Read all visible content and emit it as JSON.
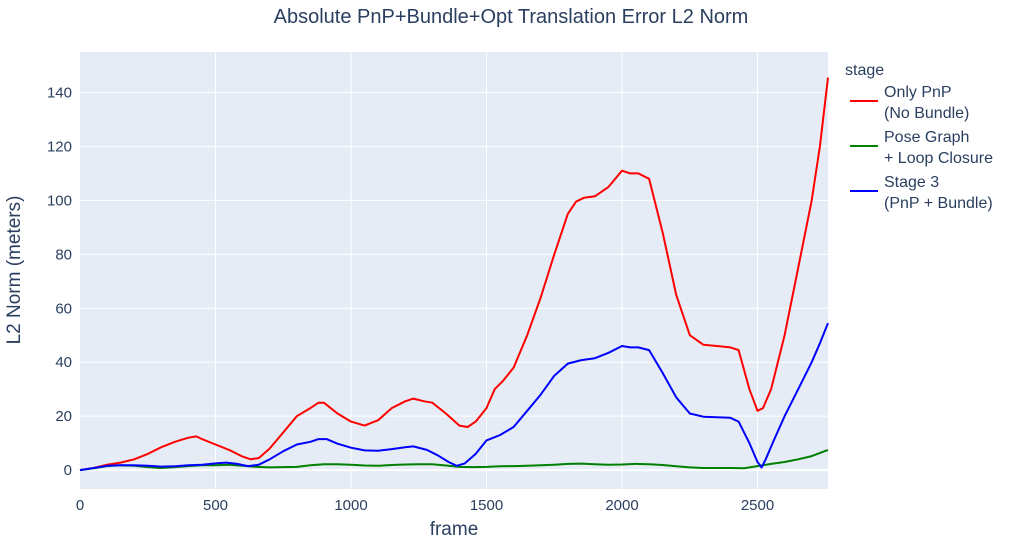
{
  "chart_data": {
    "type": "line",
    "title": "Absolute PnP+Bundle+Opt Translation Error L2 Norm",
    "xlabel": "frame",
    "ylabel": "L2 Norm (meters)",
    "xlim": [
      0,
      2760
    ],
    "ylim": [
      -7,
      155
    ],
    "x_ticks": [
      0,
      500,
      1000,
      1500,
      2000,
      2500
    ],
    "y_ticks": [
      0,
      20,
      40,
      60,
      80,
      100,
      120,
      140
    ],
    "grid": true,
    "legend": {
      "title": "stage",
      "placement": "right"
    },
    "series": [
      {
        "name": "Only PnP\n(No Bundle)",
        "color": "#ff0000",
        "points": [
          [
            0,
            0
          ],
          [
            50,
            0.8
          ],
          [
            100,
            2
          ],
          [
            150,
            2.8
          ],
          [
            200,
            4
          ],
          [
            250,
            6
          ],
          [
            300,
            8.5
          ],
          [
            350,
            10.5
          ],
          [
            400,
            12
          ],
          [
            430,
            12.5
          ],
          [
            450,
            11.5
          ],
          [
            500,
            9.5
          ],
          [
            550,
            7.5
          ],
          [
            600,
            5
          ],
          [
            630,
            4
          ],
          [
            660,
            4.5
          ],
          [
            700,
            8
          ],
          [
            750,
            14
          ],
          [
            800,
            20
          ],
          [
            850,
            23
          ],
          [
            880,
            25
          ],
          [
            900,
            25
          ],
          [
            950,
            21
          ],
          [
            1000,
            18
          ],
          [
            1050,
            16.5
          ],
          [
            1100,
            18.5
          ],
          [
            1150,
            23
          ],
          [
            1200,
            25.5
          ],
          [
            1230,
            26.5
          ],
          [
            1270,
            25.5
          ],
          [
            1300,
            25
          ],
          [
            1350,
            21
          ],
          [
            1400,
            16.5
          ],
          [
            1430,
            16
          ],
          [
            1460,
            18
          ],
          [
            1500,
            23
          ],
          [
            1530,
            30
          ],
          [
            1560,
            33
          ],
          [
            1600,
            38
          ],
          [
            1650,
            50
          ],
          [
            1700,
            64
          ],
          [
            1750,
            80
          ],
          [
            1800,
            95
          ],
          [
            1830,
            99.5
          ],
          [
            1860,
            101
          ],
          [
            1900,
            101.5
          ],
          [
            1950,
            105
          ],
          [
            2000,
            111
          ],
          [
            2030,
            110
          ],
          [
            2060,
            110
          ],
          [
            2100,
            108
          ],
          [
            2150,
            88
          ],
          [
            2200,
            65
          ],
          [
            2250,
            50
          ],
          [
            2300,
            46.5
          ],
          [
            2350,
            46
          ],
          [
            2400,
            45.5
          ],
          [
            2430,
            44.5
          ],
          [
            2470,
            30
          ],
          [
            2500,
            22
          ],
          [
            2520,
            23
          ],
          [
            2550,
            30
          ],
          [
            2600,
            50
          ],
          [
            2650,
            75
          ],
          [
            2700,
            100
          ],
          [
            2730,
            120
          ],
          [
            2760,
            145.5
          ]
        ]
      },
      {
        "name": "Pose Graph\n+ Loop Closure",
        "color": "#008000",
        "points": [
          [
            0,
            0
          ],
          [
            50,
            0.7
          ],
          [
            100,
            1.5
          ],
          [
            150,
            1.8
          ],
          [
            200,
            1.6
          ],
          [
            250,
            1.1
          ],
          [
            300,
            0.8
          ],
          [
            350,
            1.1
          ],
          [
            400,
            1.5
          ],
          [
            450,
            1.8
          ],
          [
            500,
            1.8
          ],
          [
            550,
            2
          ],
          [
            600,
            1.6
          ],
          [
            650,
            1.2
          ],
          [
            700,
            1
          ],
          [
            800,
            1.2
          ],
          [
            850,
            1.8
          ],
          [
            900,
            2.2
          ],
          [
            950,
            2.2
          ],
          [
            1000,
            2
          ],
          [
            1050,
            1.7
          ],
          [
            1100,
            1.6
          ],
          [
            1150,
            1.9
          ],
          [
            1200,
            2.1
          ],
          [
            1250,
            2.2
          ],
          [
            1300,
            2.2
          ],
          [
            1350,
            1.7
          ],
          [
            1400,
            1.2
          ],
          [
            1450,
            1.1
          ],
          [
            1500,
            1.2
          ],
          [
            1550,
            1.4
          ],
          [
            1600,
            1.5
          ],
          [
            1650,
            1.6
          ],
          [
            1700,
            1.8
          ],
          [
            1750,
            2
          ],
          [
            1800,
            2.3
          ],
          [
            1850,
            2.4
          ],
          [
            1900,
            2.2
          ],
          [
            1950,
            2
          ],
          [
            2000,
            2.1
          ],
          [
            2050,
            2.3
          ],
          [
            2100,
            2.2
          ],
          [
            2150,
            1.9
          ],
          [
            2200,
            1.4
          ],
          [
            2250,
            1
          ],
          [
            2300,
            0.8
          ],
          [
            2350,
            0.8
          ],
          [
            2400,
            0.8
          ],
          [
            2450,
            0.7
          ],
          [
            2500,
            1.5
          ],
          [
            2550,
            2.3
          ],
          [
            2600,
            3
          ],
          [
            2650,
            4
          ],
          [
            2700,
            5.2
          ],
          [
            2760,
            7.5
          ]
        ]
      },
      {
        "name": "Stage 3\n(PnP + Bundle)",
        "color": "#0000ff",
        "points": [
          [
            0,
            0
          ],
          [
            50,
            0.8
          ],
          [
            100,
            1.6
          ],
          [
            150,
            1.8
          ],
          [
            200,
            1.8
          ],
          [
            250,
            1.6
          ],
          [
            300,
            1.3
          ],
          [
            350,
            1.4
          ],
          [
            400,
            1.8
          ],
          [
            450,
            2
          ],
          [
            500,
            2.5
          ],
          [
            540,
            2.8
          ],
          [
            580,
            2.3
          ],
          [
            620,
            1.5
          ],
          [
            660,
            2
          ],
          [
            700,
            4
          ],
          [
            750,
            7
          ],
          [
            800,
            9.5
          ],
          [
            850,
            10.5
          ],
          [
            880,
            11.5
          ],
          [
            910,
            11.5
          ],
          [
            950,
            9.8
          ],
          [
            1000,
            8.3
          ],
          [
            1050,
            7.3
          ],
          [
            1100,
            7.2
          ],
          [
            1150,
            7.8
          ],
          [
            1200,
            8.5
          ],
          [
            1230,
            8.8
          ],
          [
            1280,
            7.5
          ],
          [
            1320,
            5.5
          ],
          [
            1360,
            3
          ],
          [
            1390,
            1.6
          ],
          [
            1420,
            2.5
          ],
          [
            1460,
            6
          ],
          [
            1500,
            11
          ],
          [
            1550,
            13
          ],
          [
            1600,
            16
          ],
          [
            1650,
            22
          ],
          [
            1700,
            28
          ],
          [
            1750,
            35
          ],
          [
            1800,
            39.5
          ],
          [
            1850,
            40.8
          ],
          [
            1900,
            41.5
          ],
          [
            1950,
            43.5
          ],
          [
            2000,
            46
          ],
          [
            2030,
            45.5
          ],
          [
            2060,
            45.5
          ],
          [
            2100,
            44.5
          ],
          [
            2150,
            36
          ],
          [
            2200,
            27
          ],
          [
            2250,
            21
          ],
          [
            2300,
            19.8
          ],
          [
            2350,
            19.6
          ],
          [
            2400,
            19.4
          ],
          [
            2430,
            18
          ],
          [
            2470,
            10
          ],
          [
            2500,
            3
          ],
          [
            2515,
            1
          ],
          [
            2530,
            4
          ],
          [
            2560,
            11
          ],
          [
            2600,
            20
          ],
          [
            2650,
            30
          ],
          [
            2700,
            40
          ],
          [
            2730,
            47
          ],
          [
            2760,
            54.5
          ]
        ]
      }
    ]
  }
}
